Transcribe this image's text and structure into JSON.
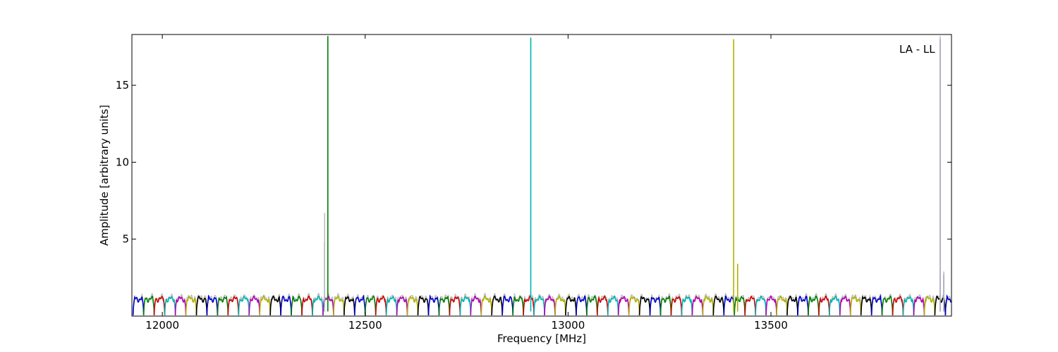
{
  "chart_data": {
    "type": "line",
    "annotation": "LA - LL",
    "xlabel": "Frequency [MHz]",
    "ylabel": "Amplitude [arbitrary units]",
    "xlim": [
      11925,
      13945
    ],
    "ylim": [
      0,
      18.3
    ],
    "x_ticks": [
      12000,
      12500,
      13000,
      13500
    ],
    "y_ticks": [
      5,
      10,
      15
    ],
    "grid": false,
    "legend": "none",
    "channel_width_mhz": 26,
    "channel_start_mhz": 11928,
    "channel_colors": [
      "#0000cc",
      "#007f00",
      "#cc0000",
      "#00b2b2",
      "#b200b2",
      "#b2b200",
      "#000000"
    ],
    "background_series": {
      "color": "#bfbfbf",
      "description_only": true
    },
    "spikes": [
      {
        "x": 12400,
        "y": 4.8,
        "color": "#0000cc"
      },
      {
        "x": 12400,
        "y": 6.7,
        "color": "#bfbfbf"
      },
      {
        "x": 12408,
        "y": 18.2,
        "color": "#007f00"
      },
      {
        "x": 12908,
        "y": 18.1,
        "color": "#00b2b2"
      },
      {
        "x": 13408,
        "y": 18.0,
        "color": "#b2b200"
      },
      {
        "x": 13418,
        "y": 3.4,
        "color": "#b2b200"
      },
      {
        "x": 13917,
        "y": 18.0,
        "color": "#0000cc"
      },
      {
        "x": 13917,
        "y": 18.2,
        "color": "#bfbfbf"
      },
      {
        "x": 13926,
        "y": 2.7,
        "color": "#0000cc"
      },
      {
        "x": 13926,
        "y": 2.9,
        "color": "#bfbfbf"
      }
    ]
  }
}
